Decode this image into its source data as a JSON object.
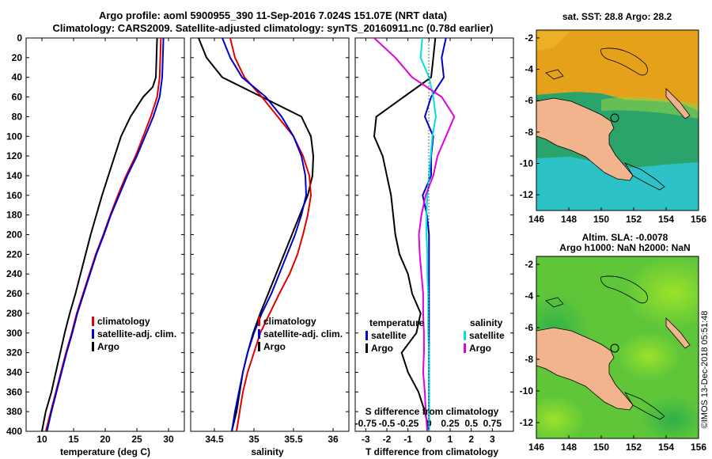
{
  "header": {
    "title_line1": "Argo profile: aoml 5900955_390 11-Sep-2016 7.024S 151.07E (NRT data)",
    "title_line2": "Climatology: CARS2009. Satellite-adjusted climatology: synTS_20160911.nc (0.78d earlier)"
  },
  "colors": {
    "climatology": "#e00000",
    "satellite": "#0000cc",
    "argo": "#000000",
    "sal_satellite": "#00e0e0",
    "sal_argo": "#e000e0",
    "land": "#f2b48c",
    "coast": "#000000"
  },
  "watermark": "©IMOS 13-Dec-2018 05:51:48",
  "chart_data": [
    {
      "id": "temperature",
      "type": "line",
      "xlabel": "temperature (deg C)",
      "ylabel": "",
      "xlim": [
        7.5,
        32.5
      ],
      "ylim": [
        400,
        0
      ],
      "xticks": [
        10,
        15,
        20,
        25,
        30
      ],
      "xtick_labels": [
        "10",
        "15",
        "20",
        "25",
        "30"
      ],
      "yticks": [
        0,
        20,
        40,
        60,
        80,
        100,
        120,
        140,
        160,
        180,
        200,
        220,
        240,
        260,
        280,
        300,
        320,
        340,
        360,
        380,
        400
      ],
      "ytick_labels": [
        "0",
        "20",
        "40",
        "60",
        "80",
        "100",
        "120",
        "140",
        "160",
        "180",
        "200",
        "220",
        "240",
        "260",
        "280",
        "300",
        "320",
        "340",
        "360",
        "380",
        "400"
      ],
      "series": [
        {
          "name": "Argo",
          "color_key": "argo",
          "depth": [
            0,
            20,
            40,
            50,
            60,
            80,
            100,
            120,
            140,
            160,
            180,
            200,
            220,
            240,
            260,
            280,
            300,
            320,
            340,
            360,
            380,
            400
          ],
          "values": [
            28.2,
            28.1,
            28.0,
            27.5,
            26.0,
            24.0,
            22.5,
            21.5,
            20.5,
            19.5,
            18.6,
            17.7,
            16.9,
            16.1,
            15.3,
            14.4,
            13.6,
            12.9,
            12.2,
            11.5,
            10.6,
            10.0
          ]
        },
        {
          "name": "climatology",
          "color_key": "climatology",
          "depth": [
            0,
            20,
            40,
            60,
            80,
            100,
            120,
            140,
            160,
            180,
            200,
            220,
            240,
            260,
            280,
            300,
            320,
            340,
            360,
            380,
            400
          ],
          "values": [
            28.8,
            28.7,
            28.6,
            28.2,
            27.2,
            26.0,
            24.8,
            23.3,
            22.0,
            20.8,
            19.7,
            18.5,
            17.5,
            16.5,
            15.5,
            14.7,
            13.8,
            13.0,
            12.2,
            11.4,
            10.6
          ]
        },
        {
          "name": "satellite-adj. clim.",
          "color_key": "satellite",
          "depth": [
            0,
            20,
            40,
            60,
            80,
            100,
            120,
            140,
            160,
            180,
            200,
            220,
            240,
            260,
            280,
            300,
            320,
            340,
            360,
            380,
            400
          ],
          "values": [
            29.2,
            29.1,
            29.0,
            28.6,
            27.6,
            26.3,
            25.0,
            23.5,
            22.2,
            20.9,
            19.8,
            18.6,
            17.6,
            16.6,
            15.6,
            14.8,
            13.9,
            13.1,
            12.3,
            11.5,
            10.8
          ]
        }
      ],
      "legend": [
        "climatology",
        "satellite-adj. clim.",
        "Argo"
      ],
      "legend_location": "lower-right"
    },
    {
      "id": "salinity",
      "type": "line",
      "xlabel": "salinity",
      "ylabel": "",
      "xlim": [
        34.2,
        36.2
      ],
      "ylim": [
        400,
        0
      ],
      "xticks": [
        34.5,
        35,
        35.5,
        36
      ],
      "xtick_labels": [
        "34.5",
        "35",
        "35.5",
        "36"
      ],
      "series": [
        {
          "name": "Argo",
          "color_key": "argo",
          "depth": [
            0,
            20,
            40,
            60,
            80,
            100,
            120,
            140,
            160,
            180,
            200,
            220,
            240,
            260,
            280,
            300,
            320,
            340,
            360,
            380,
            400
          ],
          "values": [
            34.3,
            34.4,
            34.6,
            35.1,
            35.6,
            35.72,
            35.75,
            35.74,
            35.68,
            35.58,
            35.48,
            35.38,
            35.28,
            35.18,
            35.08,
            34.99,
            34.92,
            34.86,
            34.82,
            34.78,
            34.72
          ]
        },
        {
          "name": "climatology",
          "color_key": "climatology",
          "depth": [
            0,
            20,
            40,
            60,
            80,
            100,
            120,
            140,
            160,
            180,
            200,
            220,
            240,
            260,
            280,
            300,
            320,
            340,
            360,
            380,
            400
          ],
          "values": [
            34.7,
            34.76,
            34.88,
            35.1,
            35.3,
            35.5,
            35.62,
            35.7,
            35.72,
            35.68,
            35.62,
            35.55,
            35.45,
            35.32,
            35.2,
            35.08,
            35.0,
            34.92,
            34.86,
            34.82,
            34.78
          ]
        },
        {
          "name": "satellite-adj. clim.",
          "color_key": "satellite",
          "depth": [
            0,
            20,
            40,
            60,
            80,
            100,
            120,
            140,
            160,
            180,
            200,
            220,
            240,
            260,
            280,
            300,
            320,
            340,
            360,
            380,
            400
          ],
          "values": [
            34.6,
            34.7,
            34.85,
            35.15,
            35.35,
            35.5,
            35.6,
            35.65,
            35.66,
            35.6,
            35.52,
            35.42,
            35.32,
            35.22,
            35.1,
            35.0,
            34.92,
            34.86,
            34.81,
            34.76,
            34.72
          ]
        }
      ],
      "legend": [
        "climatology",
        "satellite-adj. clim.",
        "Argo"
      ],
      "legend_location": "lower-center"
    },
    {
      "id": "differences",
      "type": "line",
      "xlabel": "T difference from climatology",
      "xlabel_top": "S difference from climatology",
      "ylabel": "",
      "xlim": [
        -3.5,
        4
      ],
      "ylim": [
        400,
        0
      ],
      "xticks": [
        -3,
        -2,
        -1,
        0,
        1,
        2,
        3
      ],
      "xtick_labels": [
        "-3",
        "-2",
        "-1",
        "0",
        "1",
        "2",
        "3"
      ],
      "xticks_top": [
        -0.75,
        -0.5,
        -0.25,
        0,
        0.25,
        0.5,
        0.75
      ],
      "xtick_labels_top": [
        "-0.75",
        "-0.5",
        "-0.25",
        "0",
        "0.25",
        "0.5",
        "0.75"
      ],
      "series": [
        {
          "name": "temperature Argo",
          "color_key": "argo",
          "depth": [
            0,
            20,
            40,
            60,
            80,
            100,
            120,
            140,
            160,
            180,
            200,
            220,
            240,
            260,
            280,
            300,
            320,
            340,
            360,
            380,
            400
          ],
          "values": [
            0.3,
            0.2,
            0.1,
            -1.2,
            -2.5,
            -2.6,
            -2.2,
            -2.0,
            -1.8,
            -1.7,
            -1.6,
            -1.4,
            -1.0,
            -0.8,
            -0.4,
            -0.6,
            -1.3,
            -1.0,
            -0.5,
            -0.2,
            0.0
          ]
        },
        {
          "name": "temperature satellite",
          "color_key": "satellite",
          "depth": [
            0,
            20,
            40,
            60,
            80,
            100,
            120,
            140,
            160,
            180,
            200,
            220,
            240,
            260,
            280,
            300,
            320,
            340,
            360,
            380,
            400
          ],
          "values": [
            0.8,
            0.6,
            0.7,
            0.1,
            -0.2,
            0.2,
            0.1,
            0.1,
            -0.3,
            -0.1,
            0.0,
            0.0,
            0.0,
            0.0,
            0.0,
            0.0,
            0.0,
            0.0,
            0.0,
            0.0,
            0.0
          ]
        },
        {
          "name": "salinity satellite",
          "color_key": "sal_satellite",
          "depth": [
            0,
            20,
            40,
            60,
            80,
            100,
            120,
            140,
            160,
            180,
            200,
            220,
            240,
            260,
            280,
            300,
            320,
            340,
            360,
            380,
            400
          ],
          "values": [
            -0.08,
            -0.1,
            0.0,
            0.05,
            0.08,
            0.04,
            0.02,
            0.0,
            -0.02,
            -0.03,
            -0.03,
            -0.02,
            -0.02,
            -0.01,
            -0.01,
            -0.01,
            0.0,
            0.0,
            0.0,
            0.0,
            0.0
          ]
        },
        {
          "name": "salinity Argo",
          "color_key": "sal_argo",
          "depth": [
            0,
            20,
            40,
            60,
            80,
            100,
            120,
            140,
            160,
            180,
            200,
            220,
            240,
            260,
            280,
            300,
            320,
            340,
            360,
            380,
            400
          ],
          "values": [
            -0.65,
            -0.4,
            -0.2,
            0.15,
            0.3,
            0.2,
            0.1,
            0.05,
            -0.04,
            -0.09,
            -0.12,
            -0.11,
            -0.09,
            -0.07,
            -0.07,
            -0.06,
            -0.06,
            -0.07,
            -0.05,
            -0.04,
            -0.02
          ]
        }
      ],
      "legend_left_title": "temperature",
      "legend_right_title": "salinity",
      "legend_left": [
        "satellite",
        "Argo"
      ],
      "legend_right": [
        "satellite",
        "Argo"
      ]
    },
    {
      "id": "sst_map",
      "type": "heatmap",
      "title": "sat. SST: 28.8 Argo: 28.2",
      "xlim": [
        146,
        156
      ],
      "ylim": [
        -13,
        -1.5
      ],
      "xticks": [
        146,
        148,
        150,
        152,
        154,
        156
      ],
      "xtick_labels": [
        "146",
        "148",
        "150",
        "152",
        "154",
        "156"
      ],
      "yticks": [
        -2,
        -4,
        -6,
        -8,
        -10,
        -12
      ],
      "ytick_labels": [
        "-2",
        "-4",
        "-6",
        "-8",
        "-10",
        "-12"
      ],
      "profile_location": [
        151.07,
        -7.024
      ]
    },
    {
      "id": "sla_map",
      "type": "heatmap",
      "title_line1": "Altim. SLA: -0.0078",
      "title_line2": "Argo h1000: NaN h2000: NaN",
      "xlim": [
        146,
        156
      ],
      "ylim": [
        -13,
        -1.5
      ],
      "xticks": [
        146,
        148,
        150,
        152,
        154,
        156
      ],
      "xtick_labels": [
        "146",
        "148",
        "150",
        "152",
        "154",
        "156"
      ],
      "yticks": [
        -2,
        -4,
        -6,
        -8,
        -10,
        -12
      ],
      "ytick_labels": [
        "-2",
        "-4",
        "-6",
        "-8",
        "-10",
        "-12"
      ],
      "profile_location": [
        151.07,
        -7.024
      ]
    }
  ]
}
